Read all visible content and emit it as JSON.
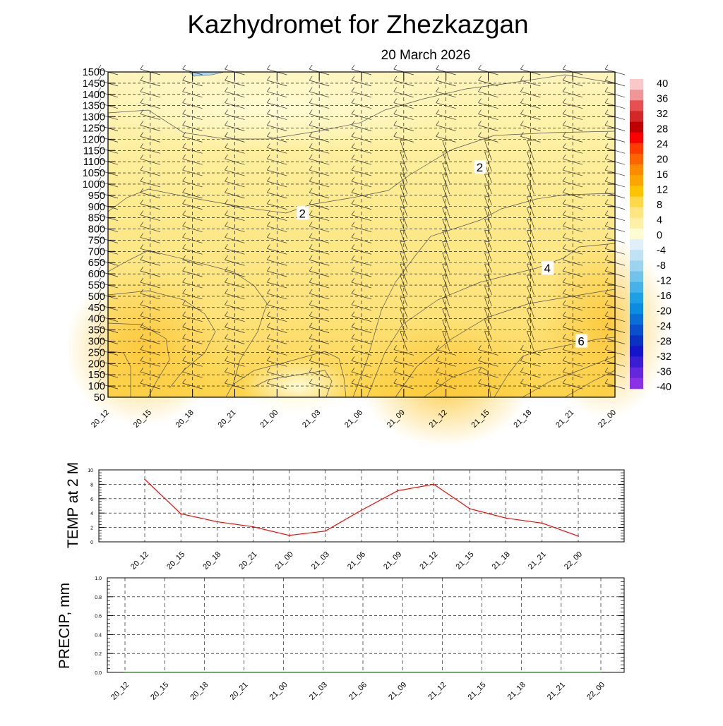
{
  "title": "Kazhydromet  for Zhezkazgan",
  "subtitle": "20 March 2026",
  "time_labels": [
    "20_12",
    "20_15",
    "20_18",
    "20_21",
    "21_00",
    "21_03",
    "21_06",
    "21_09",
    "21_12",
    "21_15",
    "21_18",
    "21_21",
    "22_00"
  ],
  "colors": {
    "line": "#ff0000",
    "contour": "#555555",
    "grid": "#000000"
  },
  "chart_data": [
    {
      "type": "heatmap",
      "name": "cross-section",
      "ylim": [
        50,
        1500
      ],
      "y_ticks": [
        50,
        100,
        150,
        200,
        250,
        300,
        350,
        400,
        450,
        500,
        550,
        600,
        650,
        700,
        750,
        800,
        850,
        900,
        950,
        1000,
        1050,
        1100,
        1150,
        1200,
        1250,
        1300,
        1350,
        1400,
        1450,
        1500
      ],
      "contour_labels": [
        {
          "text": "2",
          "x": 4.6,
          "y": 870
        },
        {
          "text": "2",
          "x": 8.8,
          "y": 1075
        },
        {
          "text": "4",
          "x": 10.4,
          "y": 625
        },
        {
          "text": "6",
          "x": 11.2,
          "y": 300
        }
      ],
      "colorbar": {
        "labels": [
          "40",
          "36",
          "32",
          "28",
          "24",
          "20",
          "16",
          "12",
          "8",
          "4",
          "0",
          "-4",
          "-8",
          "-12",
          "-16",
          "-20",
          "-24",
          "-28",
          "-32",
          "-36",
          "-40"
        ],
        "colors": [
          "#fac8c8",
          "#f09696",
          "#e65050",
          "#d22828",
          "#be0000",
          "#fa0000",
          "#ff3c00",
          "#ff6400",
          "#ff8c00",
          "#ffa500",
          "#ffc400",
          "#ffd84a",
          "#ffe680",
          "#fff0a8",
          "#fffbd2",
          "#dff0fa",
          "#bfe3f5",
          "#9cd4f0",
          "#72c3ec",
          "#46b2e8",
          "#1ea0e6",
          "#0a8ce0",
          "#0a6ed6",
          "#0a50cc",
          "#0a32c2",
          "#1414c8",
          "#3c1ed2",
          "#6428dc",
          "#8c32e6"
        ]
      }
    },
    {
      "type": "line",
      "name": "TEMP at 2 M",
      "ylabel": "TEMP at 2 M",
      "ylim": [
        0,
        10
      ],
      "y_ticks": [
        "0",
        "2",
        "4",
        "6",
        "8",
        "10"
      ],
      "x": [
        "20_12",
        "20_15",
        "20_18",
        "20_21",
        "21_00",
        "21_03",
        "21_06",
        "21_09",
        "21_12",
        "21_15",
        "21_18",
        "21_21",
        "22_00"
      ],
      "values": [
        8.7,
        3.9,
        2.8,
        2.1,
        0.9,
        1.5,
        4.4,
        7.1,
        8.0,
        4.6,
        3.3,
        2.6,
        0.8
      ]
    },
    {
      "type": "line",
      "name": "PRECIP, mm",
      "ylabel": "PRECIP, mm",
      "ylim": [
        0,
        1
      ],
      "y_ticks": [
        "0.0",
        "0.2",
        "0.4",
        "0.6",
        "0.8",
        "1.0"
      ],
      "x": [
        "20_12",
        "20_15",
        "20_18",
        "20_21",
        "21_00",
        "21_03",
        "21_06",
        "21_09",
        "21_12",
        "21_15",
        "21_18",
        "21_21",
        "22_00"
      ],
      "values": [
        0,
        0,
        0,
        0,
        0,
        0,
        0,
        0,
        0,
        0,
        0,
        0,
        0
      ]
    }
  ]
}
